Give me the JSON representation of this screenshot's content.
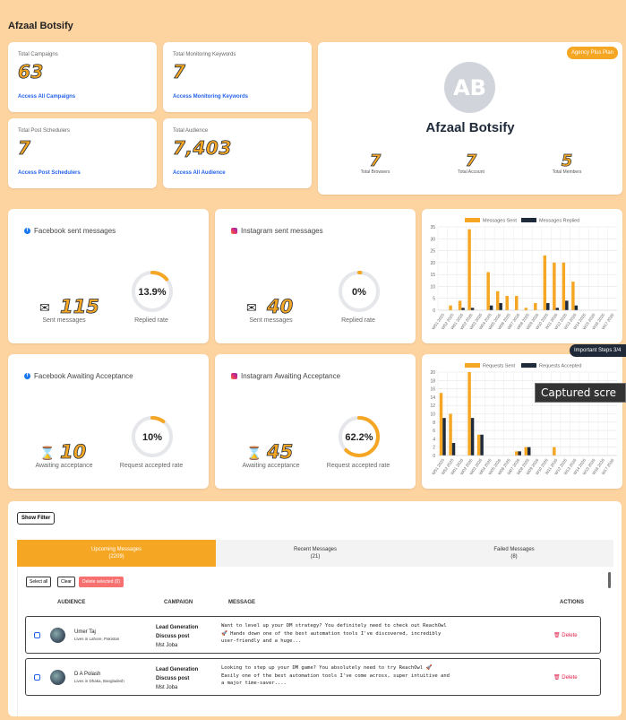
{
  "page": {
    "title": "Afzaal Botsify"
  },
  "stats": [
    {
      "label": "Total Campaigns",
      "value": "63",
      "link": "Access All Campaigns"
    },
    {
      "label": "Total Monitoring Keywords",
      "value": "7",
      "link": "Access Monitoring Keywords"
    },
    {
      "label": "Total Post Schedulers",
      "value": "7",
      "link": "Access Post Schedulers"
    },
    {
      "label": "Total Audience",
      "value": "7,403",
      "link": "Access All Audience"
    }
  ],
  "profile": {
    "badge": "Agency Plus Plan",
    "initials": "AB",
    "name": "Afzaal Botsify",
    "mini": [
      {
        "value": "7",
        "label": "Total Browsers"
      },
      {
        "value": "7",
        "label": "Total Account"
      },
      {
        "value": "5",
        "label": "Total Members"
      }
    ]
  },
  "sent_cards": [
    {
      "title": "Facebook sent messages",
      "icon": "envelope-icon",
      "value": "115",
      "value_label": "Sent messages",
      "rate": "13.9%",
      "rate_pct": 13.9,
      "rate_label": "Replied rate"
    },
    {
      "title": "Instagram sent messages",
      "icon": "envelope-icon",
      "value": "40",
      "value_label": "Sent messages",
      "rate": "0%",
      "rate_pct": 0,
      "rate_label": "Replied rate"
    }
  ],
  "await_cards": [
    {
      "title": "Facebook Awaiting Acceptance",
      "icon": "hourglass-icon",
      "value": "10",
      "value_label": "Awaiting acceptance",
      "rate": "10%",
      "rate_pct": 10,
      "rate_label": "Request accepted rate"
    },
    {
      "title": "Instagram Awaiting Acceptance",
      "icon": "hourglass-icon",
      "value": "45",
      "value_label": "Awaiting acceptance",
      "rate": "62.2%",
      "rate_pct": 62.2,
      "rate_label": "Request accepted rate"
    }
  ],
  "chart_data": [
    {
      "type": "bar",
      "categories": [
        "W51 2025",
        "W52 2025",
        "W01 2026",
        "W02 2026",
        "W03 2026",
        "W04 2026",
        "W05 2026",
        "W06 2026",
        "W07 2026",
        "W08 2026",
        "W09 2026",
        "W10 2026",
        "W11 2026",
        "W12 2026",
        "W13 2026",
        "W14 2026",
        "W15 2026",
        "W16 2026",
        "W17 2026"
      ],
      "series": [
        {
          "name": "Messages Sent",
          "color": "#f5a623",
          "values": [
            0,
            2,
            4,
            34,
            0,
            16,
            8,
            6,
            6,
            1,
            3,
            23,
            20,
            20,
            12,
            0,
            0,
            0,
            0
          ]
        },
        {
          "name": "Messages Replied",
          "color": "#1f2a3a",
          "values": [
            0,
            0,
            1,
            1,
            0,
            2,
            3,
            0,
            0,
            0,
            0,
            3,
            1,
            4,
            2,
            0,
            0,
            0,
            0
          ]
        }
      ],
      "ylim": [
        0,
        35
      ],
      "yticks": [
        0,
        5,
        10,
        15,
        20,
        25,
        30,
        35
      ],
      "legend": "top",
      "grid": true
    },
    {
      "type": "bar",
      "categories": [
        "W51 2025",
        "W52 2025",
        "W01 2026",
        "W02 2026",
        "W03 2026",
        "W04 2026",
        "W05 2026",
        "W06 2026",
        "W07 2026",
        "W08 2026",
        "W09 2026",
        "W10 2026",
        "W11 2026",
        "W12 2026",
        "W13 2026",
        "W14 2026",
        "W15 2026",
        "W16 2026",
        "W17 2026"
      ],
      "series": [
        {
          "name": "Requests Sent",
          "color": "#f5a623",
          "values": [
            15,
            10,
            0,
            20,
            5,
            0,
            0,
            0,
            1,
            2,
            0,
            0,
            2,
            0,
            0,
            0,
            0,
            0,
            0
          ]
        },
        {
          "name": "Requests Accepted",
          "color": "#1f2a3a",
          "values": [
            9,
            3,
            0,
            9,
            5,
            0,
            0,
            0,
            1,
            2,
            0,
            0,
            0,
            0,
            0,
            0,
            0,
            0,
            0
          ]
        }
      ],
      "ylim": [
        0,
        20
      ],
      "yticks": [
        0,
        2,
        4,
        6,
        8,
        10,
        12,
        14,
        16,
        18,
        20
      ],
      "legend": "top",
      "grid": true
    }
  ],
  "overlays": {
    "tooltip": "Important Steps 3/4",
    "captured": "Captured scre"
  },
  "messages": {
    "show_filter": "Show Filter",
    "tabs": [
      {
        "label": "Upcoming Messages",
        "count": "(2209)"
      },
      {
        "label": "Recent Messages",
        "count": "(21)"
      },
      {
        "label": "Failed Messages",
        "count": "(8)"
      }
    ],
    "select_all": "Select all",
    "clear": "Clear",
    "delete_selected": "Delete selected (0)",
    "headers": {
      "audience": "AUDIENCE",
      "campaign": "CAMPAIGN",
      "message": "MESSAGE",
      "actions": "ACTIONS"
    },
    "rows": [
      {
        "name": "Umer Taj",
        "location": "Lives in Lahore, Pakistan",
        "campaign": "Lead Generation",
        "campaign_type": "Discuss post",
        "owner": "Mst Joba",
        "message": "Want to level up your DM strategy? You definitely need to check out ReachOwl\n🚀 Hands down one of the best automation tools I've discovered, incredibly\nuser-friendly and a huge...",
        "action": "Delete"
      },
      {
        "name": "D A Polash",
        "location": "Lives in Dhaka, Bangladesh",
        "campaign": "Lead Generation",
        "campaign_type": "Discuss post",
        "owner": "Mst Joba",
        "message": "Looking to step up your DM game? You absolutely need to try ReachOwl 🚀\nEasily one of the best automation tools I've come across, super intuitive and\na major time-saver....",
        "action": "Delete"
      }
    ]
  }
}
